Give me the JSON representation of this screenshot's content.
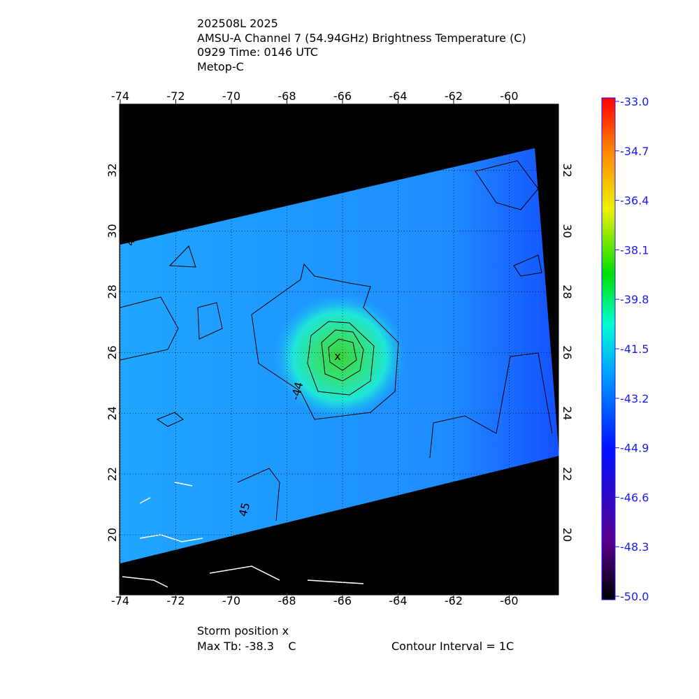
{
  "header": {
    "lines": [
      "202508L 2025",
      "AMSU-A Channel 7 (54.94GHz) Brightness Temperature (C)",
      "0929 Time: 0146 UTC",
      "Metop-C"
    ]
  },
  "map": {
    "lonlim": [
      -74.05,
      -58.2
    ],
    "latlim": [
      18.0,
      34.2
    ],
    "lon_ticks": [
      -74,
      -72,
      -70,
      -68,
      -66,
      -64,
      -62,
      -60
    ],
    "lat_ticks": [
      20,
      22,
      24,
      26,
      28,
      30,
      32
    ],
    "contour_labels": [
      {
        "text": "4",
        "lon": -73.5,
        "lat": 29.6
      },
      {
        "text": "-44",
        "lon": -67.5,
        "lat": 24.7
      },
      {
        "text": "45",
        "lon": -69.4,
        "lat": 20.8
      }
    ]
  },
  "colorbar": {
    "lim": [
      -50.0,
      -33.0
    ],
    "ticks": [
      {
        "value": -33.0,
        "label": "-33.0"
      },
      {
        "value": -34.7,
        "label": "-34.7"
      },
      {
        "value": -36.4,
        "label": "-36.4"
      },
      {
        "value": -38.1,
        "label": "-38.1"
      },
      {
        "value": -39.8,
        "label": "-39.8"
      },
      {
        "value": -41.5,
        "label": "-41.5"
      },
      {
        "value": -43.2,
        "label": "-43.2"
      },
      {
        "value": -44.9,
        "label": "-44.9"
      },
      {
        "value": -46.6,
        "label": "-46.6"
      },
      {
        "value": -48.3,
        "label": "-48.3"
      },
      {
        "value": -50.0,
        "label": "-50.0"
      }
    ]
  },
  "footer": {
    "storm": "Storm position x",
    "max_tb": "Max Tb: -38.3    C",
    "interval": "Contour Interval = 1C"
  }
}
